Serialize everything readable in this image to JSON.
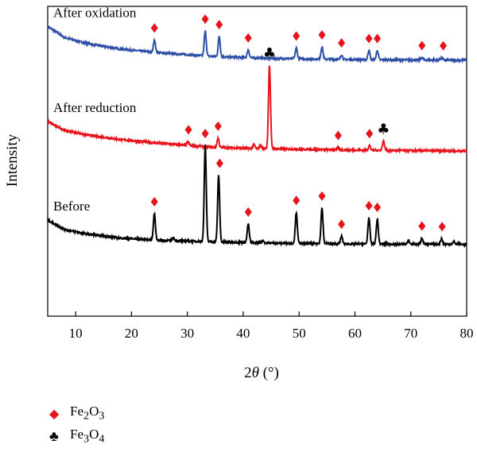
{
  "chart_data": {
    "type": "line",
    "title": "",
    "xlabel": "2θ (°)",
    "ylabel": "Intensity",
    "xlim": [
      5,
      80
    ],
    "xticks": [
      10,
      20,
      30,
      40,
      50,
      60,
      70,
      80
    ],
    "grid": false,
    "series": [
      {
        "name": "After oxidation",
        "color": "#2d4fa8",
        "baseline": [
          [
            5,
            0.935
          ],
          [
            8,
            0.9
          ],
          [
            12,
            0.88
          ],
          [
            18,
            0.862
          ],
          [
            25,
            0.85
          ],
          [
            35,
            0.838
          ],
          [
            45,
            0.832
          ],
          [
            60,
            0.828
          ],
          [
            80,
            0.826
          ]
        ],
        "peaks": [
          [
            24.1,
            0.04
          ],
          [
            33.2,
            0.08
          ],
          [
            35.7,
            0.065
          ],
          [
            40.9,
            0.025
          ],
          [
            49.5,
            0.035
          ],
          [
            54.1,
            0.04
          ],
          [
            57.6,
            0.015
          ],
          [
            62.5,
            0.03
          ],
          [
            64.0,
            0.03
          ],
          [
            72.0,
            0.008
          ],
          [
            75.5,
            0.008
          ]
        ],
        "markers": [
          {
            "x": 24.1,
            "symbol": "Fe2O3"
          },
          {
            "x": 33.2,
            "symbol": "Fe2O3"
          },
          {
            "x": 35.7,
            "symbol": "Fe2O3"
          },
          {
            "x": 40.9,
            "symbol": "Fe2O3"
          },
          {
            "x": 49.5,
            "symbol": "Fe2O3"
          },
          {
            "x": 54.1,
            "symbol": "Fe2O3"
          },
          {
            "x": 57.6,
            "symbol": "Fe2O3"
          },
          {
            "x": 62.5,
            "symbol": "Fe2O3"
          },
          {
            "x": 64.0,
            "symbol": "Fe2O3"
          },
          {
            "x": 72.0,
            "symbol": "Fe2O3"
          },
          {
            "x": 75.8,
            "symbol": "Fe2O3"
          }
        ]
      },
      {
        "name": "After reduction",
        "color": "#e8121a",
        "baseline": [
          [
            5,
            0.628
          ],
          [
            8,
            0.6
          ],
          [
            12,
            0.585
          ],
          [
            18,
            0.57
          ],
          [
            25,
            0.558
          ],
          [
            35,
            0.545
          ],
          [
            45,
            0.54
          ],
          [
            60,
            0.536
          ],
          [
            80,
            0.533
          ]
        ],
        "peaks": [
          [
            30.1,
            0.012
          ],
          [
            35.5,
            0.03
          ],
          [
            41.9,
            0.012
          ],
          [
            43.1,
            0.01
          ],
          [
            44.7,
            0.27
          ],
          [
            57.0,
            0.008
          ],
          [
            62.6,
            0.015
          ],
          [
            65.1,
            0.03
          ]
        ],
        "markers": [
          {
            "x": 30.2,
            "symbol": "Fe2O3"
          },
          {
            "x": 35.5,
            "symbol": "Fe2O3"
          },
          {
            "x": 44.7,
            "symbol": "Fe3O4"
          },
          {
            "x": 57.0,
            "symbol": "Fe2O3"
          },
          {
            "x": 62.6,
            "symbol": "Fe2O3"
          },
          {
            "x": 65.1,
            "symbol": "Fe3O4"
          }
        ]
      },
      {
        "name": "Before",
        "color": "#000000",
        "baseline": [
          [
            5,
            0.31
          ],
          [
            8,
            0.28
          ],
          [
            12,
            0.265
          ],
          [
            18,
            0.252
          ],
          [
            25,
            0.245
          ],
          [
            35,
            0.24
          ],
          [
            45,
            0.236
          ],
          [
            60,
            0.233
          ],
          [
            80,
            0.232
          ]
        ],
        "peaks": [
          [
            24.1,
            0.085
          ],
          [
            27.5,
            0.01
          ],
          [
            33.2,
            0.31
          ],
          [
            35.6,
            0.215
          ],
          [
            40.9,
            0.06
          ],
          [
            43.5,
            0.008
          ],
          [
            49.5,
            0.1
          ],
          [
            54.1,
            0.115
          ],
          [
            57.6,
            0.025
          ],
          [
            62.5,
            0.085
          ],
          [
            64.0,
            0.08
          ],
          [
            69.6,
            0.01
          ],
          [
            72.0,
            0.02
          ],
          [
            75.5,
            0.018
          ],
          [
            77.7,
            0.008
          ]
        ],
        "markers": [
          {
            "x": 24.1,
            "symbol": "Fe2O3"
          },
          {
            "x": 33.2,
            "symbol": "Fe2O3"
          },
          {
            "x": 35.8,
            "symbol": "Fe2O3"
          },
          {
            "x": 40.9,
            "symbol": "Fe2O3"
          },
          {
            "x": 49.5,
            "symbol": "Fe2O3"
          },
          {
            "x": 54.1,
            "symbol": "Fe2O3"
          },
          {
            "x": 57.6,
            "symbol": "Fe2O3"
          },
          {
            "x": 62.5,
            "symbol": "Fe2O3"
          },
          {
            "x": 64.0,
            "symbol": "Fe2O3"
          },
          {
            "x": 72.0,
            "symbol": "Fe2O3"
          },
          {
            "x": 75.6,
            "symbol": "Fe2O3"
          }
        ]
      }
    ],
    "legend": {
      "placement": "bottom-left",
      "entries": [
        {
          "symbol": "Fe2O3",
          "marker": "diamond",
          "color": "#e8121a",
          "label_main": "Fe",
          "sub1": "2",
          "mid": "O",
          "sub2": "3"
        },
        {
          "symbol": "Fe3O4",
          "marker": "club",
          "color": "#000000",
          "label_main": "Fe",
          "sub1": "3",
          "mid": "O",
          "sub2": "4"
        }
      ]
    }
  }
}
